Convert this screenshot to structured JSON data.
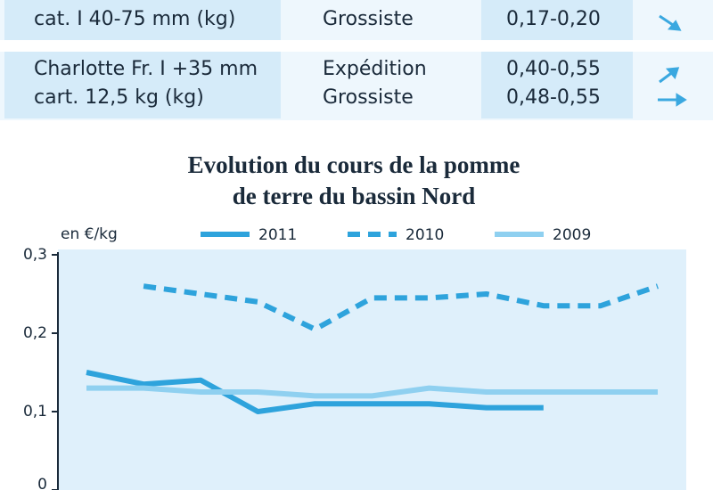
{
  "table": {
    "rows": [
      {
        "product": [
          "cat. I 40-75 mm (kg)"
        ],
        "stage": [
          "Grossiste"
        ],
        "price": [
          "0,17-0,20"
        ]
      },
      {
        "product": [
          "Charlotte Fr. I +35 mm",
          "cart. 12,5 kg (kg)"
        ],
        "stage": [
          "Expédition",
          "Grossiste"
        ],
        "price": [
          "0,40-0,55",
          "0,48-0,55"
        ]
      }
    ]
  },
  "chart_data": {
    "type": "line",
    "title": [
      "Evolution du cours de la pomme",
      "de terre du bassin Nord"
    ],
    "y_label": "en €/kg",
    "categories": [
      null,
      null,
      null,
      null,
      null,
      null,
      null,
      null,
      null,
      null,
      null
    ],
    "series": [
      {
        "name": "2011",
        "color": "#2ea3dc",
        "dash": false,
        "values": [
          0.15,
          0.135,
          0.14,
          0.1,
          0.11,
          0.11,
          0.11,
          0.105,
          0.105,
          null,
          null
        ]
      },
      {
        "name": "2010",
        "color": "#2ea3dc",
        "dash": true,
        "values": [
          null,
          0.26,
          0.25,
          0.24,
          0.205,
          0.245,
          0.245,
          0.25,
          0.235,
          0.235,
          0.26
        ]
      },
      {
        "name": "2009",
        "color": "#8fd0f0",
        "dash": false,
        "values": [
          0.13,
          0.13,
          0.125,
          0.125,
          0.12,
          0.12,
          0.13,
          0.125,
          0.125,
          0.125,
          0.125
        ]
      }
    ],
    "ylim": [
      0,
      0.3
    ],
    "yticks": [
      {
        "value": 0,
        "label": "0"
      },
      {
        "value": 0.1,
        "label": "0,1"
      },
      {
        "value": 0.2,
        "label": "0,2"
      },
      {
        "value": 0.3,
        "label": "0,3"
      }
    ]
  }
}
